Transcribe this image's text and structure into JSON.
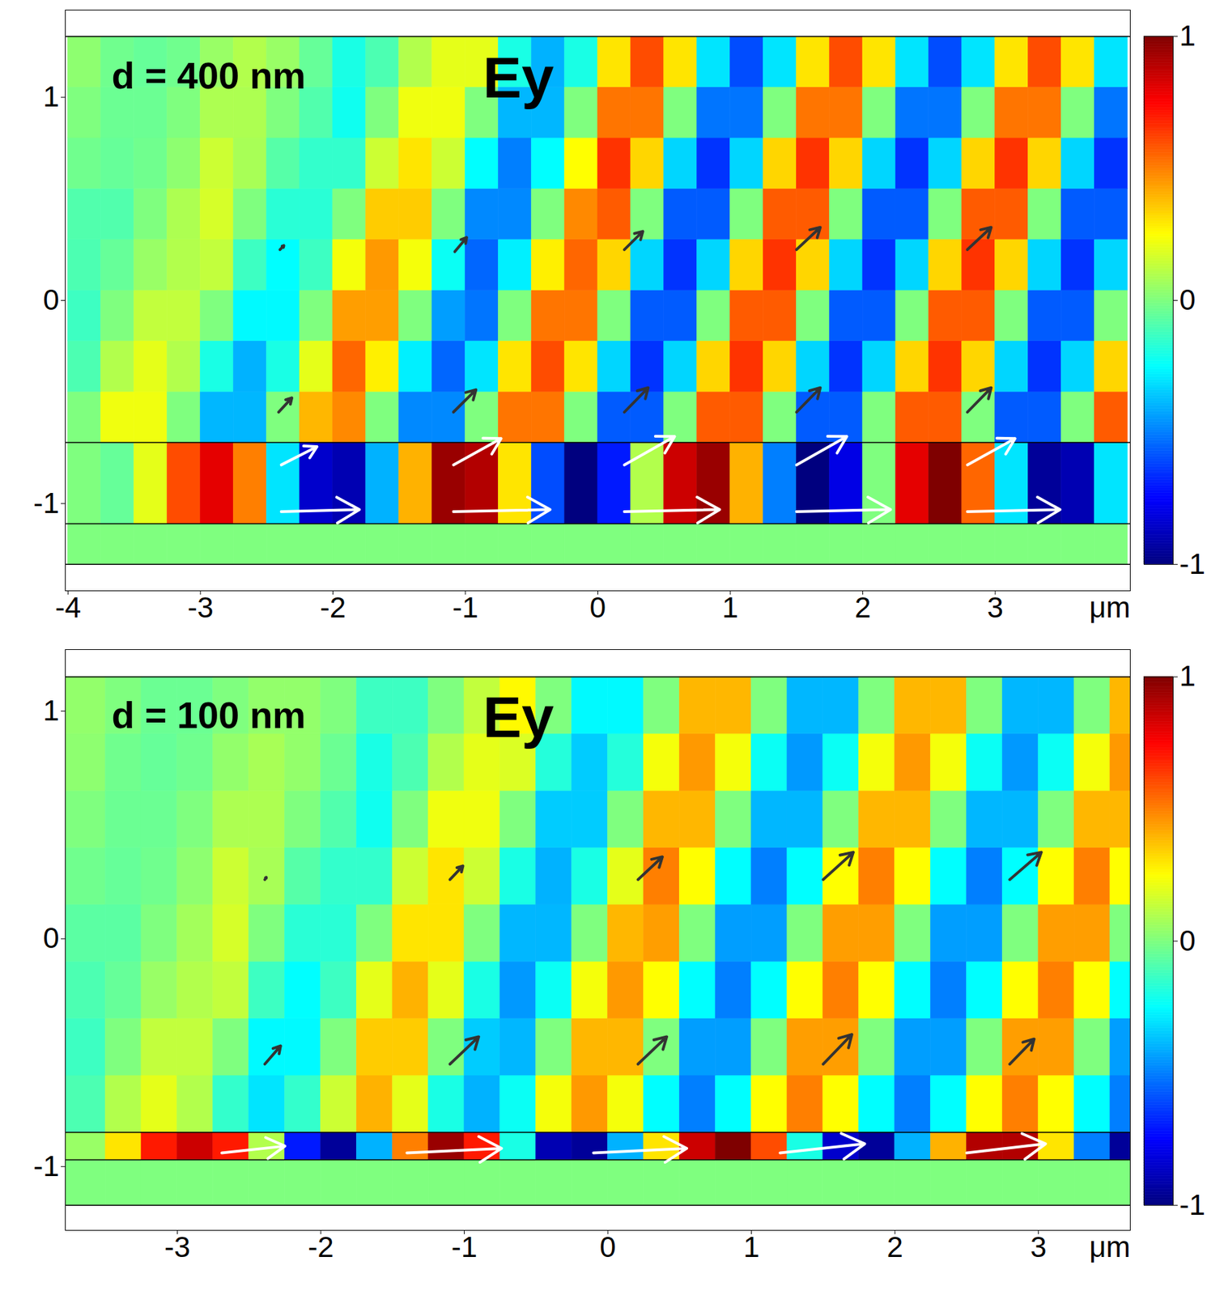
{
  "chart_data": [
    {
      "type": "heatmap",
      "annotations": [
        "d = 400 nm",
        "Ey"
      ],
      "x_label": "μm",
      "xlim": [
        -4.02,
        4.02
      ],
      "ylim": [
        -1.43,
        1.43
      ],
      "xticks": [
        -4,
        -3,
        -2,
        -1,
        0,
        1,
        2,
        3
      ],
      "yticks": [
        -1,
        0,
        1
      ],
      "layer_boundaries": [
        -1.3,
        -1.1,
        -0.7,
        1.3
      ],
      "colorbar": {
        "range": [
          -1,
          1
        ],
        "ticks": [
          -1,
          0,
          1
        ]
      },
      "cells": {
        "x_edges": [
          -4,
          -3.75,
          -3.5,
          -3.25,
          -3,
          -2.75,
          -2.5,
          -2.25,
          -2,
          -1.75,
          -1.5,
          -1.25,
          -1,
          -0.75,
          -0.5,
          -0.25,
          0,
          0.25,
          0.5,
          0.75,
          1,
          1.25,
          1.5,
          1.75,
          2,
          2.25,
          2.5,
          2.75,
          3,
          3.25,
          3.5,
          3.75,
          4
        ],
        "y_edges": [
          -1.3,
          -1.1,
          -0.7,
          -0.45,
          -0.2,
          0.05,
          0.3,
          0.55,
          0.8,
          1.05,
          1.3
        ],
        "values": [
          [
            0,
            0,
            0,
            0,
            0,
            0,
            0,
            0,
            0,
            0,
            0,
            0,
            0,
            0,
            0,
            0,
            0,
            0,
            0,
            0,
            0,
            0,
            0,
            0,
            0,
            0,
            0,
            0,
            0,
            0,
            0,
            0
          ],
          [
            0,
            -0.05,
            0.2,
            0.6,
            0.8,
            0.5,
            -0.3,
            -0.85,
            -0.9,
            -0.4,
            0.4,
            0.95,
            0.9,
            0.3,
            -0.6,
            -1,
            -0.7,
            0.1,
            0.85,
            0.95,
            0.4,
            -0.5,
            -1,
            -0.8,
            0,
            0.8,
            1,
            0.55,
            -0.3,
            -0.95,
            -0.9,
            -0.3
          ],
          [
            0,
            0.22,
            0.22,
            0,
            -0.39,
            -0.39,
            0,
            0.39,
            0.48,
            0,
            -0.48,
            -0.48,
            0,
            0.52,
            0.52,
            0,
            -0.57,
            -0.57,
            0,
            0.57,
            0.57,
            0,
            -0.57,
            -0.57,
            0,
            0.57,
            0.57,
            0,
            -0.57,
            -0.57,
            0,
            0.57
          ],
          [
            -0.1,
            0.1,
            0.2,
            0.1,
            -0.2,
            -0.4,
            -0.2,
            0.2,
            0.55,
            0.28,
            -0.28,
            -0.55,
            -0.3,
            0.3,
            0.6,
            0.3,
            -0.33,
            -0.65,
            -0.33,
            0.33,
            0.65,
            0.33,
            -0.33,
            -0.65,
            -0.33,
            0.33,
            0.65,
            0.33,
            -0.33,
            -0.65,
            -0.33,
            0.33
          ],
          [
            -0.13,
            0,
            0.13,
            0.13,
            0,
            -0.26,
            -0.26,
            0,
            0.44,
            0.44,
            0,
            -0.44,
            -0.52,
            0,
            0.52,
            0.52,
            0,
            -0.57,
            -0.57,
            0,
            0.57,
            0.57,
            0,
            -0.57,
            -0.57,
            0,
            0.57,
            0.57,
            0,
            -0.57,
            -0.57,
            0
          ],
          [
            -0.1,
            -0.05,
            0.05,
            0.1,
            0.13,
            -0.13,
            -0.25,
            -0.13,
            0.23,
            0.45,
            0.23,
            -0.23,
            -0.55,
            -0.28,
            0.28,
            0.55,
            0.33,
            -0.33,
            -0.65,
            -0.33,
            0.33,
            0.65,
            0.33,
            -0.33,
            -0.65,
            -0.33,
            0.33,
            0.65,
            0.33,
            -0.33,
            -0.65,
            -0.33
          ],
          [
            -0.09,
            -0.09,
            0,
            0.09,
            0.17,
            0,
            -0.17,
            -0.17,
            0,
            0.35,
            0.35,
            0,
            -0.48,
            -0.48,
            0,
            0.48,
            0.57,
            0,
            -0.57,
            -0.57,
            0,
            0.57,
            0.57,
            0,
            -0.57,
            -0.57,
            0,
            0.57,
            0.57,
            0,
            -0.57,
            -0.57
          ],
          [
            -0.03,
            -0.05,
            -0.03,
            0.03,
            0.15,
            0.08,
            -0.08,
            -0.15,
            -0.15,
            0.15,
            0.3,
            0.15,
            -0.25,
            -0.5,
            -0.25,
            0.25,
            0.65,
            0.33,
            -0.33,
            -0.65,
            -0.33,
            0.33,
            0.65,
            0.33,
            -0.33,
            -0.65,
            -0.33,
            0.33,
            0.65,
            0.33,
            -0.33,
            -0.65
          ],
          [
            0,
            -0.04,
            -0.04,
            0,
            0.09,
            0.09,
            0,
            -0.09,
            -0.22,
            0,
            0.22,
            0.22,
            0,
            -0.39,
            -0.39,
            0,
            0.52,
            0.52,
            0,
            -0.52,
            -0.52,
            0,
            0.52,
            0.52,
            0,
            -0.52,
            -0.52,
            0,
            0.52,
            0.52,
            0,
            -0.52
          ],
          [
            0.03,
            -0.03,
            -0.05,
            -0.03,
            0.05,
            0.1,
            0.05,
            -0.05,
            -0.2,
            -0.1,
            0.1,
            0.2,
            0.2,
            -0.2,
            -0.4,
            -0.2,
            0.3,
            0.6,
            0.3,
            -0.3,
            -0.6,
            -0.3,
            0.3,
            0.6,
            0.3,
            -0.3,
            -0.6,
            -0.3,
            0.3,
            0.6,
            0.3,
            -0.3
          ]
        ]
      },
      "arrows": [
        {
          "x1": -2.39,
          "y1": -1.04,
          "x2": -1.8,
          "y2": -1.03,
          "color": "#ffffff"
        },
        {
          "x1": -1.09,
          "y1": -1.04,
          "x2": -0.36,
          "y2": -1.03,
          "color": "#ffffff"
        },
        {
          "x1": 0.2,
          "y1": -1.04,
          "x2": 0.92,
          "y2": -1.03,
          "color": "#ffffff"
        },
        {
          "x1": 1.5,
          "y1": -1.04,
          "x2": 2.21,
          "y2": -1.03,
          "color": "#ffffff"
        },
        {
          "x1": 2.79,
          "y1": -1.04,
          "x2": 3.49,
          "y2": -1.03,
          "color": "#ffffff"
        },
        {
          "x1": -2.39,
          "y1": -0.81,
          "x2": -2.12,
          "y2": -0.72,
          "color": "#ffffff"
        },
        {
          "x1": -1.09,
          "y1": -0.81,
          "x2": -0.73,
          "y2": -0.68,
          "color": "#ffffff"
        },
        {
          "x1": 0.2,
          "y1": -0.81,
          "x2": 0.58,
          "y2": -0.67,
          "color": "#ffffff"
        },
        {
          "x1": 1.5,
          "y1": -0.81,
          "x2": 1.88,
          "y2": -0.67,
          "color": "#ffffff"
        },
        {
          "x1": 2.79,
          "y1": -0.81,
          "x2": 3.15,
          "y2": -0.68,
          "color": "#ffffff"
        },
        {
          "x1": -2.41,
          "y1": -0.55,
          "x2": -2.31,
          "y2": -0.48,
          "color": "#333333"
        },
        {
          "x1": -1.09,
          "y1": -0.55,
          "x2": -0.92,
          "y2": -0.44,
          "color": "#333333"
        },
        {
          "x1": 0.2,
          "y1": -0.55,
          "x2": 0.38,
          "y2": -0.43,
          "color": "#333333"
        },
        {
          "x1": 1.5,
          "y1": -0.55,
          "x2": 1.68,
          "y2": -0.43,
          "color": "#333333"
        },
        {
          "x1": 2.79,
          "y1": -0.55,
          "x2": 2.97,
          "y2": -0.43,
          "color": "#333333"
        },
        {
          "x1": -2.4,
          "y1": 0.25,
          "x2": -2.37,
          "y2": 0.27,
          "color": "#333333"
        },
        {
          "x1": -1.08,
          "y1": 0.24,
          "x2": -0.99,
          "y2": 0.31,
          "color": "#333333"
        },
        {
          "x1": 0.2,
          "y1": 0.25,
          "x2": 0.34,
          "y2": 0.34,
          "color": "#333333"
        },
        {
          "x1": 1.5,
          "y1": 0.25,
          "x2": 1.68,
          "y2": 0.36,
          "color": "#333333"
        },
        {
          "x1": 2.79,
          "y1": 0.25,
          "x2": 2.97,
          "y2": 0.36,
          "color": "#333333"
        }
      ]
    },
    {
      "type": "heatmap",
      "annotations": [
        "d = 100 nm",
        "Ey"
      ],
      "x_label": "μm",
      "xlim": [
        -3.78,
        3.64
      ],
      "ylim": [
        -1.28,
        1.27
      ],
      "xticks": [
        -3,
        -2,
        -1,
        0,
        1,
        2,
        3
      ],
      "yticks": [
        -1,
        0,
        1
      ],
      "layer_boundaries": [
        -1.17,
        -0.97,
        -0.85,
        1.15
      ],
      "colorbar": {
        "range": [
          -1,
          1
        ],
        "ticks": [
          -1,
          0,
          1
        ]
      },
      "cells": {
        "x_edges": [
          -3.78,
          -3.5,
          -3.25,
          -3,
          -2.75,
          -2.5,
          -2.25,
          -2,
          -1.75,
          -1.5,
          -1.25,
          -1,
          -0.75,
          -0.5,
          -0.25,
          0,
          0.25,
          0.5,
          0.75,
          1,
          1.25,
          1.5,
          1.75,
          2,
          2.25,
          2.5,
          2.75,
          3,
          3.25,
          3.5,
          3.64
        ],
        "y_edges": [
          -1.17,
          -0.97,
          -0.85,
          -0.6,
          -0.35,
          -0.1,
          0.15,
          0.4,
          0.65,
          0.9,
          1.15
        ],
        "values": [
          [
            0,
            0,
            0,
            0,
            0,
            0,
            0,
            0,
            0,
            0,
            0,
            0,
            0,
            0,
            0,
            0,
            0,
            0,
            0,
            0,
            0,
            0,
            0,
            0,
            0,
            0,
            0,
            0,
            0,
            0
          ],
          [
            0.05,
            0.3,
            0.7,
            0.85,
            0.7,
            0.1,
            -0.7,
            -0.95,
            -0.4,
            0.5,
            0.95,
            0.7,
            -0.2,
            -0.9,
            -0.95,
            -0.4,
            0.3,
            0.85,
            1,
            0.6,
            -0.2,
            -0.85,
            -0.95,
            -0.4,
            0.4,
            0.9,
            0.9,
            0.3,
            -0.5,
            -0.95
          ],
          [
            -0.1,
            0.1,
            0.2,
            0.1,
            -0.15,
            -0.3,
            -0.15,
            0.15,
            0.4,
            0.2,
            -0.2,
            -0.4,
            -0.23,
            0.23,
            0.45,
            0.23,
            -0.25,
            -0.5,
            -0.25,
            0.25,
            0.5,
            0.25,
            -0.25,
            -0.5,
            -0.25,
            0.25,
            0.5,
            0.25,
            -0.25,
            -0.5
          ],
          [
            -0.13,
            0,
            0.13,
            0.13,
            0,
            -0.26,
            -0.26,
            0,
            0.35,
            0.35,
            0,
            -0.35,
            -0.39,
            0,
            0.39,
            0.39,
            0,
            -0.44,
            -0.44,
            0,
            0.44,
            0.44,
            0,
            -0.44,
            -0.44,
            0,
            0.44,
            0.44,
            0,
            -0.44
          ],
          [
            -0.1,
            -0.05,
            0.05,
            0.1,
            0.13,
            -0.13,
            -0.25,
            -0.13,
            0.2,
            0.4,
            0.2,
            -0.2,
            -0.45,
            -0.23,
            0.23,
            0.45,
            0.25,
            -0.25,
            -0.5,
            -0.25,
            0.25,
            0.5,
            0.25,
            -0.25,
            -0.5,
            -0.25,
            0.25,
            0.5,
            0.25,
            -0.25
          ],
          [
            -0.07,
            -0.07,
            0,
            0.07,
            0.17,
            0,
            -0.17,
            -0.17,
            0,
            0.3,
            0.3,
            0,
            -0.39,
            -0.39,
            0,
            0.39,
            0.44,
            0,
            -0.44,
            -0.44,
            0,
            0.44,
            0.44,
            0,
            -0.44,
            -0.44,
            0,
            0.44,
            0.44,
            0
          ],
          [
            -0.03,
            -0.05,
            -0.03,
            0.03,
            0.15,
            0.08,
            -0.08,
            -0.15,
            -0.15,
            0.15,
            0.3,
            0.15,
            -0.2,
            -0.4,
            -0.2,
            0.2,
            0.5,
            0.25,
            -0.25,
            -0.5,
            -0.25,
            0.25,
            0.5,
            0.25,
            -0.25,
            -0.5,
            -0.25,
            0.25,
            0.5,
            0.25
          ],
          [
            0,
            -0.04,
            -0.04,
            0,
            0.09,
            0.09,
            0,
            -0.09,
            -0.22,
            0,
            0.22,
            0.22,
            0,
            -0.35,
            -0.35,
            0,
            0.39,
            0.39,
            0,
            -0.39,
            -0.39,
            0,
            0.39,
            0.39,
            0,
            -0.39,
            -0.39,
            0,
            0.39,
            0.39
          ],
          [
            0.03,
            -0.03,
            -0.05,
            -0.03,
            0.04,
            0.08,
            0.04,
            -0.04,
            -0.2,
            -0.1,
            0.1,
            0.2,
            0.18,
            -0.18,
            -0.35,
            -0.18,
            0.23,
            0.45,
            0.23,
            -0.23,
            -0.45,
            -0.23,
            0.23,
            0.45,
            0.23,
            -0.23,
            -0.45,
            -0.23,
            0.23,
            0.45
          ],
          [
            0.04,
            0,
            -0.04,
            -0.04,
            0,
            0.04,
            0.04,
            0,
            -0.13,
            -0.13,
            0,
            0.13,
            0.26,
            0,
            -0.26,
            -0.26,
            0,
            0.39,
            0.39,
            0,
            -0.39,
            -0.39,
            0,
            0.39,
            0.39,
            0,
            -0.39,
            -0.39,
            0,
            0.39
          ]
        ]
      },
      "arrows": [
        {
          "x1": -2.69,
          "y1": -0.94,
          "x2": -2.25,
          "y2": -0.91,
          "color": "#ffffff"
        },
        {
          "x1": -1.4,
          "y1": -0.94,
          "x2": -0.74,
          "y2": -0.92,
          "color": "#ffffff"
        },
        {
          "x1": -0.1,
          "y1": -0.94,
          "x2": 0.55,
          "y2": -0.92,
          "color": "#ffffff"
        },
        {
          "x1": 1.2,
          "y1": -0.94,
          "x2": 1.79,
          "y2": -0.9,
          "color": "#ffffff"
        },
        {
          "x1": 2.5,
          "y1": -0.94,
          "x2": 3.05,
          "y2": -0.9,
          "color": "#ffffff"
        },
        {
          "x1": -2.39,
          "y1": -0.55,
          "x2": -2.28,
          "y2": -0.47,
          "color": "#333333"
        },
        {
          "x1": -1.1,
          "y1": -0.55,
          "x2": -0.9,
          "y2": -0.43,
          "color": "#333333"
        },
        {
          "x1": 0.21,
          "y1": -0.55,
          "x2": 0.41,
          "y2": -0.43,
          "color": "#333333"
        },
        {
          "x1": 1.5,
          "y1": -0.55,
          "x2": 1.7,
          "y2": -0.42,
          "color": "#333333"
        },
        {
          "x1": 2.8,
          "y1": -0.55,
          "x2": 2.97,
          "y2": -0.44,
          "color": "#333333"
        },
        {
          "x1": -2.39,
          "y1": 0.26,
          "x2": -2.38,
          "y2": 0.27,
          "color": "#333333"
        },
        {
          "x1": -1.1,
          "y1": 0.26,
          "x2": -1.01,
          "y2": 0.32,
          "color": "#333333"
        },
        {
          "x1": 0.21,
          "y1": 0.26,
          "x2": 0.38,
          "y2": 0.36,
          "color": "#333333"
        },
        {
          "x1": 1.5,
          "y1": 0.26,
          "x2": 1.71,
          "y2": 0.38,
          "color": "#333333"
        },
        {
          "x1": 2.8,
          "y1": 0.26,
          "x2": 3.02,
          "y2": 0.38,
          "color": "#333333"
        }
      ]
    }
  ]
}
